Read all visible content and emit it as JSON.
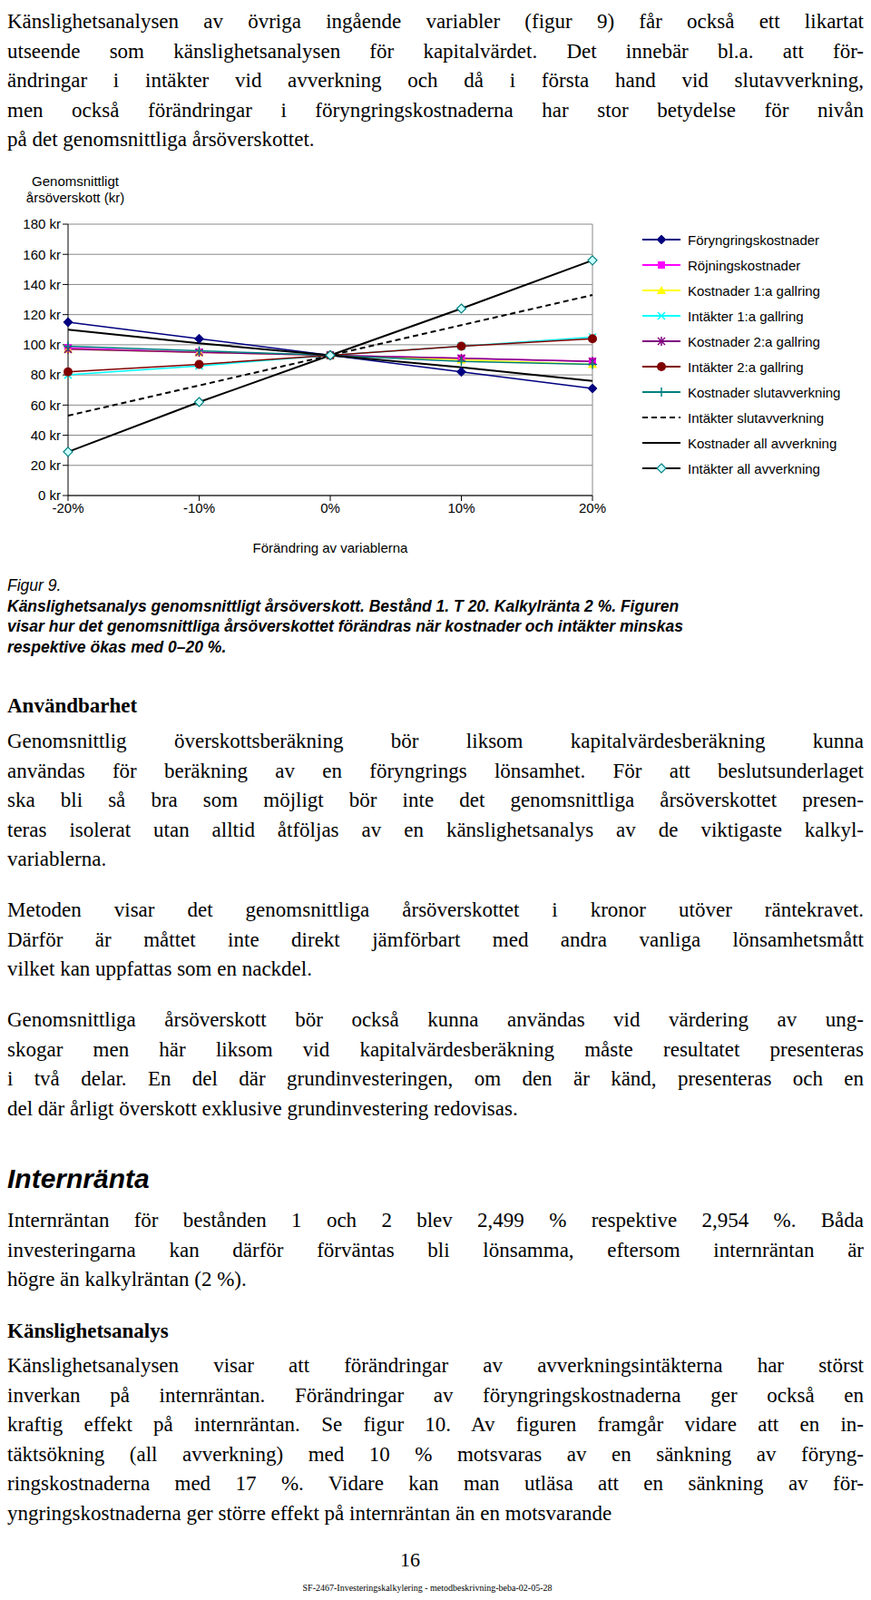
{
  "intro": {
    "lines": [
      "Känslighetsanalysen av övriga ingående variabler (figur 9) får också ett likartat",
      "utseende som känslighetsanalysen för kapitalvärdet. Det innebär bl.a. att för-",
      "ändringar i intäkter vid avverkning och då i första hand vid slutavverkning,",
      "men också förändringar i föryngringskostnaderna har stor betydelse för nivån",
      "på det genomsnittliga årsöverskottet."
    ]
  },
  "chart_data": {
    "type": "line",
    "y_label": "Genomsnittligt årsöverskott (kr)",
    "x_label": "Förändring av variablerna",
    "categories": [
      "-20%",
      "-10%",
      "0%",
      "10%",
      "20%"
    ],
    "ylim": [
      0,
      180
    ],
    "yticks": [
      {
        "value": 0,
        "label": "0 kr"
      },
      {
        "value": 20,
        "label": "20 kr"
      },
      {
        "value": 40,
        "label": "40 kr"
      },
      {
        "value": 60,
        "label": "60 kr"
      },
      {
        "value": 80,
        "label": "80 kr"
      },
      {
        "value": 100,
        "label": "100 kr"
      },
      {
        "value": 120,
        "label": "120 kr"
      },
      {
        "value": 140,
        "label": "140 kr"
      },
      {
        "value": 160,
        "label": "160 kr"
      },
      {
        "value": 180,
        "label": "180 kr"
      }
    ],
    "grid": true,
    "legend": "right",
    "series": [
      {
        "name": "Föryngringskostnader",
        "color": "#000080",
        "marker": "diamond",
        "line_style": "solid",
        "values": [
          115,
          104,
          93,
          82,
          71
        ]
      },
      {
        "name": "Röjningskostnader",
        "color": "#ff00ff",
        "marker": "square",
        "line_style": "solid",
        "values": [
          98,
          95,
          93,
          91,
          89
        ]
      },
      {
        "name": "Kostnader 1:a gallring",
        "color": "#ffff00",
        "marker": "triangle",
        "line_style": "solid",
        "values": [
          97,
          95,
          93,
          90,
          87
        ]
      },
      {
        "name": "Intäkter 1:a gallring",
        "color": "#00ffff",
        "marker": "cross",
        "line_style": "solid",
        "values": [
          80,
          86,
          93,
          99,
          105
        ]
      },
      {
        "name": "Kostnader  2:a gallring",
        "color": "#800080",
        "marker": "star",
        "line_style": "solid",
        "values": [
          97,
          95,
          93,
          91,
          89
        ]
      },
      {
        "name": "Intäkter 2:a gallring",
        "color": "#800000",
        "marker": "circle",
        "line_style": "solid",
        "values": [
          82,
          87,
          93,
          99,
          104
        ]
      },
      {
        "name": "Kostnader slutavverkning",
        "color": "#008080",
        "marker": "plus",
        "line_style": "solid",
        "values": [
          99,
          96,
          93,
          89,
          87
        ]
      },
      {
        "name": "Intäkter slutavverkning",
        "color": "#000000",
        "marker": "none",
        "line_style": "dashed",
        "values": [
          53,
          73,
          93,
          113,
          133
        ]
      },
      {
        "name": "Kostnader all avverkning",
        "color": "#000000",
        "marker": "none",
        "line_style": "solid",
        "values": [
          110,
          101,
          93,
          85,
          76
        ]
      },
      {
        "name": "Intäkter all avverkning",
        "color": "#000000",
        "marker": "open_diamond",
        "line_style": "solid",
        "values": [
          29,
          62,
          93,
          124,
          156
        ]
      }
    ]
  },
  "caption": {
    "label": "Figur 9.",
    "lines": [
      "Känslighetsanalys genomsnittligt årsöverskott. Bestånd 1. T 20. Kalkylränta 2 %. Figuren",
      "visar hur det genomsnittliga årsöverskottet förändras när kostnader och intäkter minskas",
      "respektive ökas med 0–20 %."
    ]
  },
  "usability": {
    "heading": "Användbarhet",
    "paragraphs": [
      [
        "Genomsnittlig överskottsberäkning bör liksom kapitalvärdesberäkning kunna",
        "användas för beräkning av en föryngrings lönsamhet. För att beslutsunderlaget",
        "ska bli så bra som möjligt bör inte det genomsnittliga årsöverskottet presen-",
        "teras isolerat utan alltid åtföljas av en känslighetsanalys av de viktigaste kalkyl-",
        "variablerna."
      ],
      [
        "Metoden visar det genomsnittliga årsöverskottet i kronor utöver räntekravet.",
        "Därför är måttet inte direkt jämförbart med andra vanliga lönsamhetsmått",
        "vilket kan uppfattas som en nackdel."
      ],
      [
        "Genomsnittliga årsöverskott bör också kunna användas vid värdering av ung-",
        "skogar men här liksom vid kapitalvärdesberäkning måste resultatet presenteras",
        "i två delar. En del där grundinvesteringen, om den är känd, presenteras och en",
        "del där årligt överskott exklusive grundinvestering redovisas."
      ]
    ]
  },
  "irr": {
    "heading": "Internränta",
    "lines": [
      "Internräntan för bestånden 1 och 2 blev 2,499 % respektive 2,954 %. Båda",
      "investeringarna kan därför förväntas bli lönsamma, eftersom internräntan är",
      "högre än kalkylräntan (2 %)."
    ]
  },
  "sensitivity": {
    "heading": "Känslighetsanalys",
    "lines": [
      "Känslighetsanalysen visar att förändringar av avverkningsintäkterna har störst",
      "inverkan på internräntan. Förändringar av föryngringskostnaderna ger också en",
      "kraftig effekt på internräntan. Se figur 10. Av figuren framgår vidare att en in-",
      "täktsökning (all avverkning) med 10 % motsvaras av en sänkning av föryng-",
      "ringskostnaderna med 17 %. Vidare kan man utläsa att en sänkning av för-",
      "yngringskostnaderna ger större effekt på internräntan än en motsvarande"
    ]
  },
  "page_number": "16",
  "footer": "SF-2467-Investeringskalkylering - metodbeskrivning-beba-02-05-28"
}
